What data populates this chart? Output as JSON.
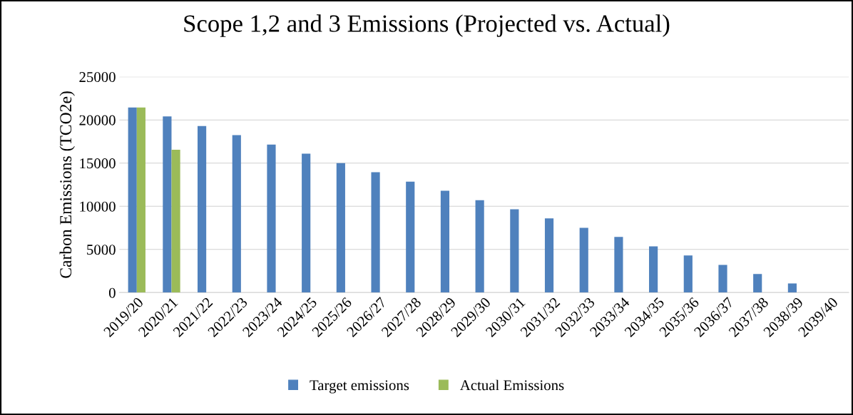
{
  "chart_data": {
    "type": "bar",
    "title": "Scope 1,2 and 3 Emissions (Projected vs. Actual)",
    "ylabel": "Carbon Emissions (TCO2e)",
    "categories": [
      "2019/20",
      "2020/21",
      "2021/22",
      "2022/23",
      "2023/24",
      "2024/25",
      "2025/26",
      "2026/27",
      "2027/28",
      "2028/29",
      "2029/30",
      "2030/31",
      "2031/32",
      "2032/33",
      "2033/34",
      "2034/35",
      "2035/36",
      "2036/37",
      "2037/38",
      "2038/39",
      "2039/40"
    ],
    "series": [
      {
        "name": "Target emissions",
        "color": "#4f81bd",
        "values": [
          21450,
          20400,
          19300,
          18250,
          17150,
          16100,
          15000,
          13950,
          12850,
          11800,
          10700,
          9650,
          8600,
          7500,
          6450,
          5350,
          4300,
          3200,
          2150,
          1050,
          0
        ]
      },
      {
        "name": "Actual Emissions",
        "color": "#9bbb59",
        "values": [
          21450,
          16550,
          null,
          null,
          null,
          null,
          null,
          null,
          null,
          null,
          null,
          null,
          null,
          null,
          null,
          null,
          null,
          null,
          null,
          null,
          null
        ]
      }
    ],
    "ylim": [
      0,
      25000
    ],
    "yticks": [
      0,
      5000,
      10000,
      15000,
      20000,
      25000
    ],
    "grid": "y",
    "legend": "bottom"
  }
}
